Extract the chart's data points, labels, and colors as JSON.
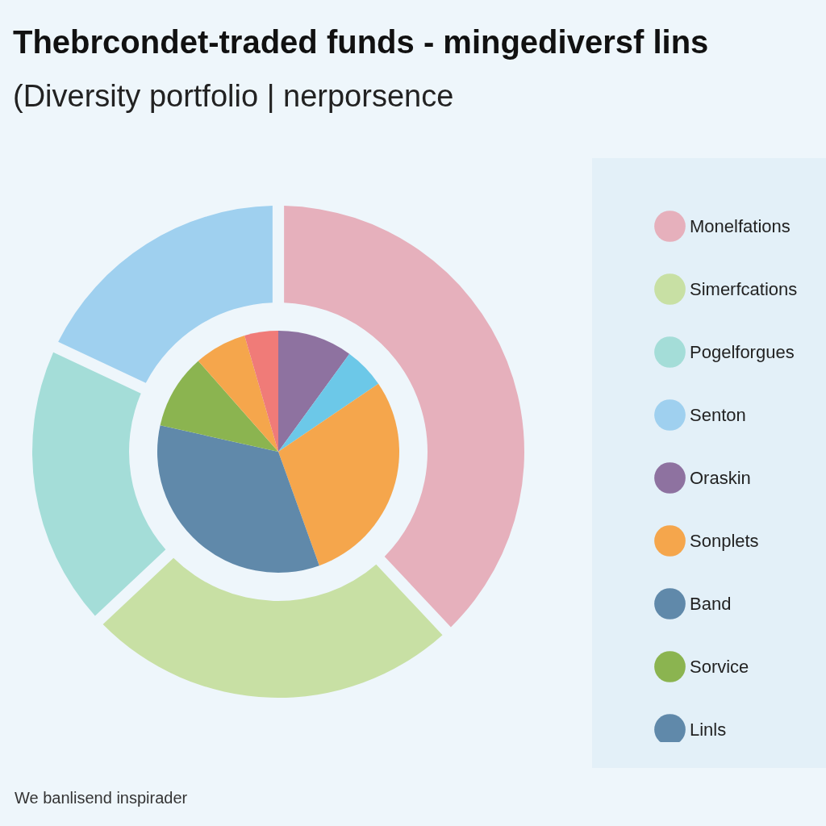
{
  "chart_data": [
    {
      "type": "donut",
      "title": "Thebrcondet-traded funds - mingediversf lins",
      "subtitle": "(Diversity portfolio | nerporsence",
      "legend": "right",
      "annotations": [
        "We banlisend inspirader"
      ],
      "categories": [
        "Monelfations",
        "Simerfcations",
        "Pogelforgues",
        "Senton"
      ],
      "values": [
        38,
        25,
        19,
        18
      ],
      "colors": [
        "#e6b0bc",
        "#c8e0a4",
        "#a4ddd8",
        "#9fd0ef"
      ]
    },
    {
      "type": "pie",
      "legend": "right",
      "categories": [
        "Oraskin",
        null,
        "Sonplets",
        "Band",
        "Sorvice",
        null,
        null,
        "Linls"
      ],
      "values": [
        10,
        5.5,
        29,
        34,
        10,
        7,
        4.5,
        null
      ],
      "colors": [
        "#8e72a0",
        "#6cc8e8",
        "#f5a64c",
        "#6089aa",
        "#8bb450",
        "#f5a64c",
        "#f07b78",
        "#6089aa"
      ]
    }
  ]
}
